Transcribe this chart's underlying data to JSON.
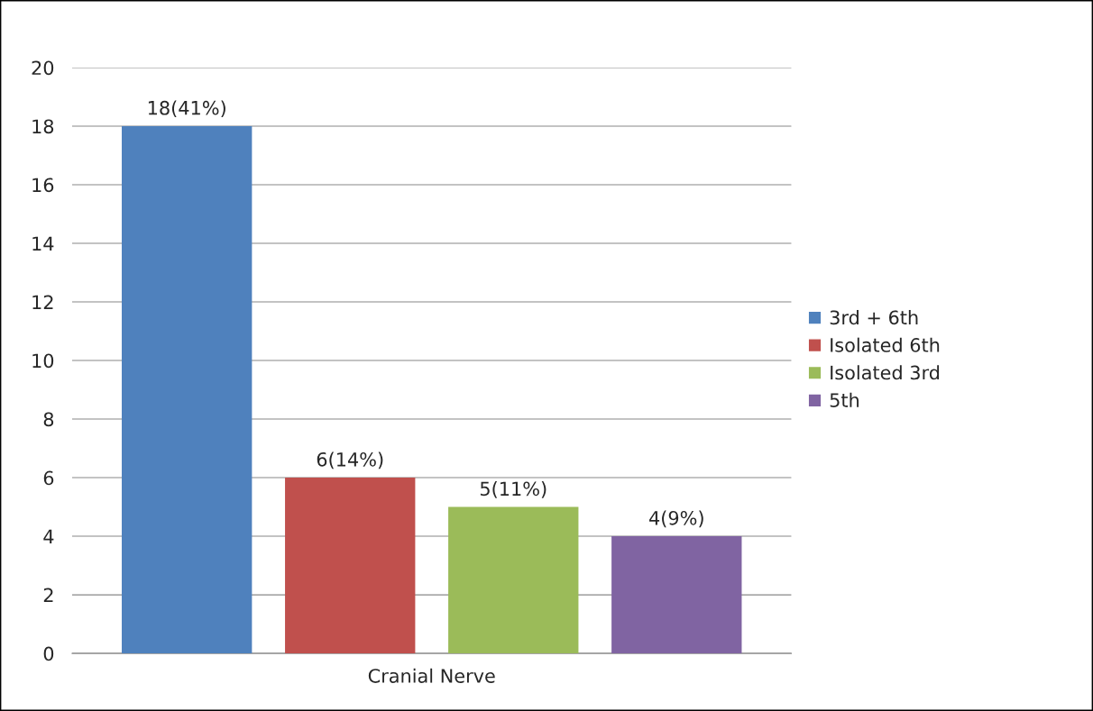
{
  "chart_data": {
    "type": "bar",
    "categories": [
      "Cranial Nerve"
    ],
    "series": [
      {
        "name": "3rd + 6th",
        "color": "#4f81bd",
        "values": [
          18
        ],
        "value_labels": [
          "18(41%)"
        ]
      },
      {
        "name": "Isolated 6th",
        "color": "#c0504d",
        "values": [
          6
        ],
        "value_labels": [
          "6(14%)"
        ]
      },
      {
        "name": "Isolated 3rd",
        "color": "#9bbb59",
        "values": [
          5
        ],
        "value_labels": [
          "5(11%)"
        ]
      },
      {
        "name": "5th",
        "color": "#8064a2",
        "values": [
          4
        ],
        "value_labels": [
          "4(9%)"
        ]
      }
    ],
    "ylim": [
      0,
      20
    ],
    "yticks": [
      0,
      2,
      4,
      6,
      8,
      10,
      12,
      14,
      16,
      18,
      20
    ],
    "grid": "y",
    "legend": "right"
  }
}
